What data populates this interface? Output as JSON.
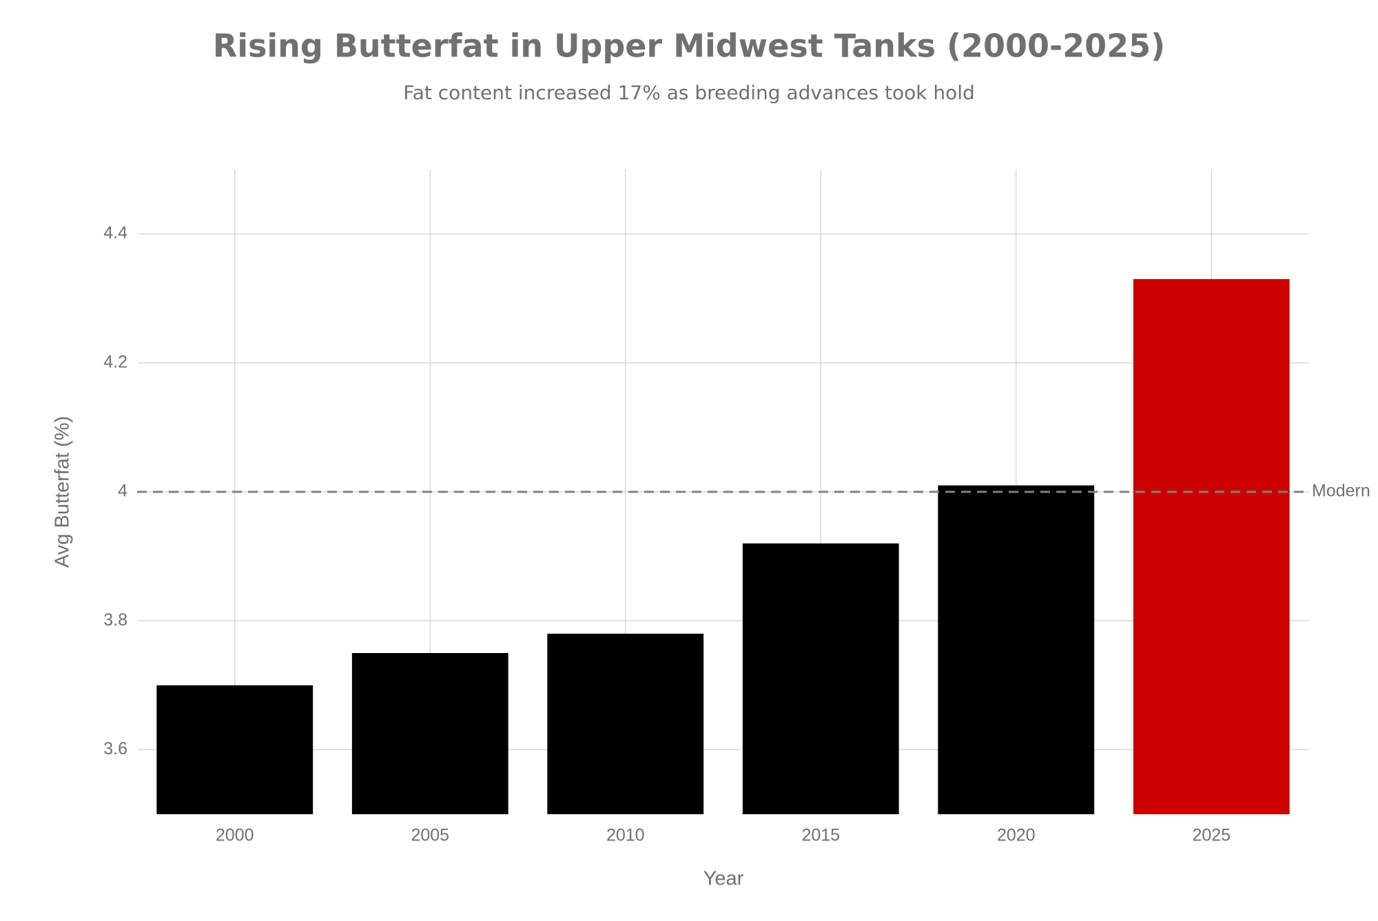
{
  "chart_data": {
    "type": "bar",
    "title": "Rising Butterfat in Upper Midwest Tanks (2000-2025)",
    "subtitle": "Fat content increased 17% as breeding advances took hold",
    "x_label": "Year",
    "y_label": "Avg Butterfat (%)",
    "categories": [
      "2000",
      "2005",
      "2010",
      "2015",
      "2020",
      "2025"
    ],
    "values": [
      3.7,
      3.75,
      3.78,
      3.92,
      4.01,
      4.33
    ],
    "colors": [
      "#000000",
      "#000000",
      "#000000",
      "#000000",
      "#000000",
      "#cc0000"
    ],
    "ylim": [
      3.5,
      4.5
    ],
    "yticks": [
      3.6,
      3.8,
      4,
      4.2,
      4.4
    ],
    "grid": true,
    "reference_line": {
      "value": 4,
      "label": "Modern"
    }
  }
}
